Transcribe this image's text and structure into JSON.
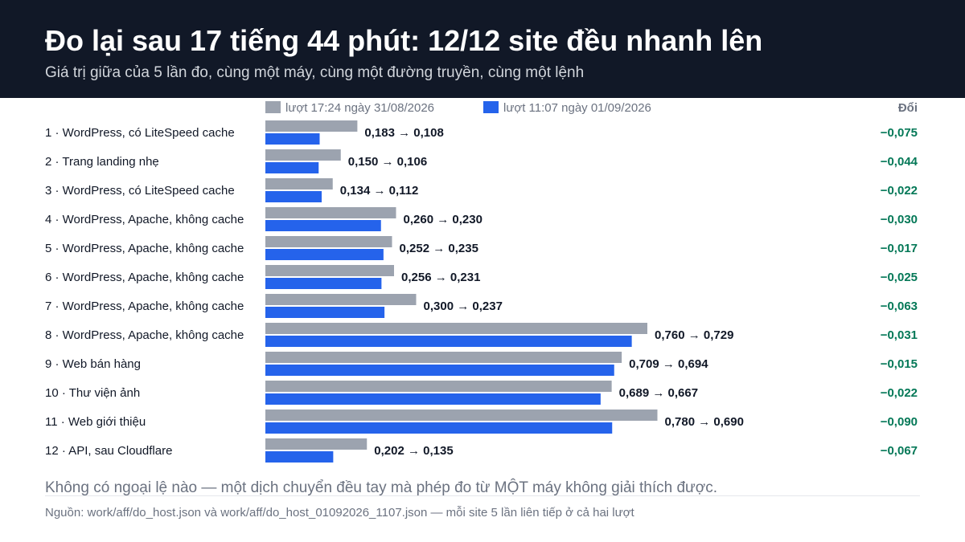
{
  "title": "Đo lại sau 17 tiếng 44 phút: 12/12 site đều nhanh lên",
  "subtitle": "Giá trị giữa của 5 lần đo, cùng một máy, cùng một đường truyền, cùng một lệnh",
  "footnote": "Không có ngoại lệ nào — một dịch chuyển đều tay mà phép đo từ MỘT máy không giải thích được.",
  "source": "Nguồn: work/aff/do_host.json và work/aff/do_host_01092026_1107.json — mỗi site 5 lần liên tiếp ở cả hai lượt",
  "colors": {
    "before": "#9ca3af",
    "after": "#2563eb",
    "delta": "#047857",
    "header_bg": "#111827"
  },
  "chart_data": {
    "type": "bar",
    "orientation": "horizontal",
    "legend_position": "top",
    "delta_header": "Đổi",
    "xlim": [
      0,
      0.96
    ],
    "categories": [
      "1 · WordPress, có LiteSpeed cache",
      "2 · Trang landing nhẹ",
      "3 · WordPress, có LiteSpeed cache",
      "4 · WordPress, Apache, không cache",
      "5 · WordPress, Apache, không cache",
      "6 · WordPress, Apache, không cache",
      "7 · WordPress, Apache, không cache",
      "8 · WordPress, Apache, không cache",
      "9 · Web bán hàng",
      "10 · Thư viện ảnh",
      "11 · Web giới thiệu",
      "12 · API, sau Cloudflare"
    ],
    "series": [
      {
        "name": "lượt 17:24 ngày 31/08/2026",
        "values": [
          0.183,
          0.15,
          0.134,
          0.26,
          0.252,
          0.256,
          0.3,
          0.76,
          0.709,
          0.689,
          0.78,
          0.202
        ]
      },
      {
        "name": "lượt 11:07 ngày 01/09/2026",
        "values": [
          0.108,
          0.106,
          0.112,
          0.23,
          0.235,
          0.231,
          0.237,
          0.729,
          0.694,
          0.667,
          0.69,
          0.135
        ]
      }
    ],
    "value_labels": [
      "0,183 → 0,108",
      "0,150 → 0,106",
      "0,134 → 0,112",
      "0,260 → 0,230",
      "0,252 → 0,235",
      "0,256 → 0,231",
      "0,300 → 0,237",
      "0,760 → 0,729",
      "0,709 → 0,694",
      "0,689 → 0,667",
      "0,780 → 0,690",
      "0,202 → 0,135"
    ],
    "deltas": [
      "−0,075",
      "−0,044",
      "−0,022",
      "−0,030",
      "−0,017",
      "−0,025",
      "−0,063",
      "−0,031",
      "−0,015",
      "−0,022",
      "−0,090",
      "−0,067"
    ]
  }
}
